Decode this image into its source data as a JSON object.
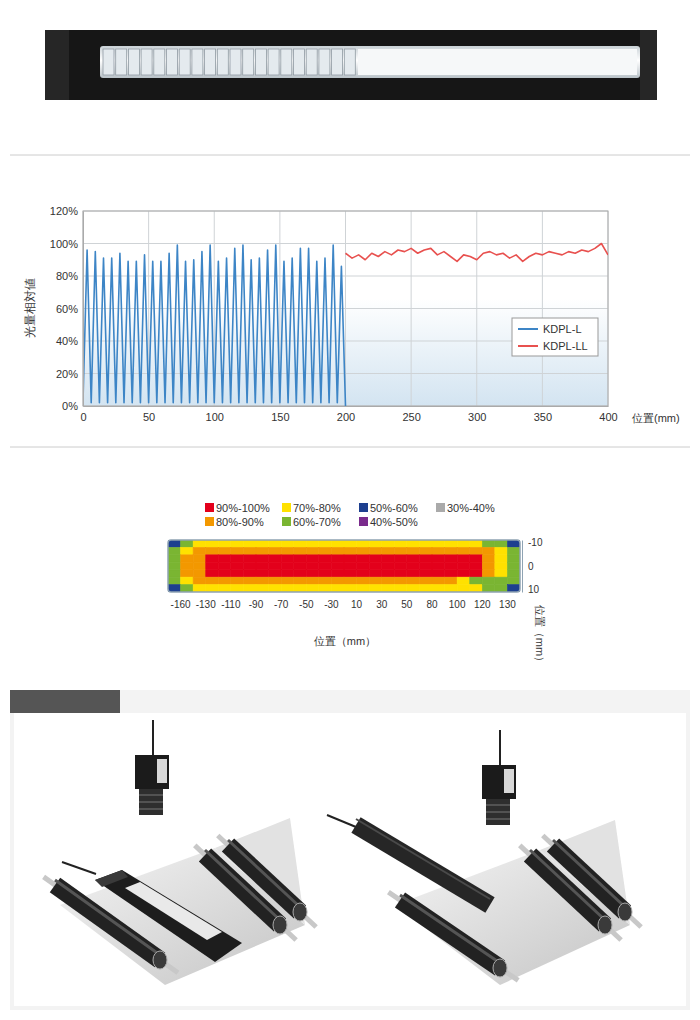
{
  "chart_data": [
    {
      "type": "line",
      "xlabel": "位置(mm)",
      "ylabel": "光量相対値",
      "xlim": [
        0,
        400
      ],
      "xticks": [
        0,
        50,
        100,
        150,
        200,
        250,
        300,
        350,
        400
      ],
      "ylim": [
        0,
        120
      ],
      "yticks": [
        {
          "value": 0,
          "label": "0%"
        },
        {
          "value": 20,
          "label": "20%"
        },
        {
          "value": 40,
          "label": "40%"
        },
        {
          "value": 60,
          "label": "60%"
        },
        {
          "value": 80,
          "label": "80%"
        },
        {
          "value": 100,
          "label": "100%"
        },
        {
          "value": 120,
          "label": "120%"
        }
      ],
      "grid": true,
      "legend": "right",
      "series": [
        {
          "name": "KDPL-L",
          "color": "#3d85c6",
          "x": [
            0,
            3.125,
            6.25,
            9.375,
            12.5,
            15.625,
            18.75,
            21.875,
            25,
            28.125,
            31.25,
            34.375,
            37.5,
            40.625,
            43.75,
            46.875,
            50,
            53.125,
            56.25,
            59.375,
            62.5,
            65.625,
            68.75,
            71.875,
            75,
            78.125,
            81.25,
            84.375,
            87.5,
            90.625,
            93.75,
            96.875,
            100,
            103.125,
            106.25,
            109.375,
            112.5,
            115.625,
            118.75,
            121.875,
            125,
            128.125,
            131.25,
            134.375,
            137.5,
            140.625,
            143.75,
            146.875,
            150,
            153.125,
            156.25,
            159.375,
            162.5,
            165.625,
            168.75,
            171.875,
            175,
            178.125,
            181.25,
            184.375,
            187.5,
            190.625,
            193.75,
            196.875,
            200
          ],
          "values": [
            3,
            96,
            2,
            95,
            2,
            91,
            2,
            91,
            2,
            94,
            2,
            89,
            2,
            89,
            2,
            93,
            2,
            89,
            2,
            89,
            2,
            94,
            2,
            99,
            2,
            89,
            2,
            90,
            2,
            95,
            2,
            99,
            2,
            89,
            2,
            91,
            2,
            97,
            2,
            99,
            2,
            90,
            2,
            91,
            2,
            96,
            2,
            99,
            2,
            89,
            2,
            91,
            2,
            97,
            2,
            97,
            2,
            89,
            2,
            91,
            2,
            99,
            2,
            86,
            0
          ]
        },
        {
          "name": "KDPL-LL",
          "color": "#e8514f",
          "x": [
            200,
            205,
            210,
            215,
            220,
            225,
            230,
            235,
            240,
            245,
            250,
            255,
            260,
            265,
            270,
            275,
            280,
            285,
            290,
            295,
            300,
            305,
            310,
            315,
            320,
            325,
            330,
            335,
            340,
            345,
            350,
            355,
            360,
            365,
            370,
            375,
            380,
            385,
            390,
            395,
            400
          ],
          "values": [
            94,
            91,
            93,
            90,
            94,
            92,
            95,
            93,
            96,
            95,
            97,
            94,
            96,
            97,
            93,
            95,
            92,
            89,
            93,
            92,
            90,
            94,
            95,
            93,
            94,
            91,
            93,
            89,
            92,
            94,
            93,
            95,
            94,
            93,
            95,
            94,
            96,
            95,
            97,
            100,
            93
          ]
        }
      ]
    },
    {
      "type": "heatmap",
      "xlabel": "位置（mm）",
      "ylabel": "位置（mm）",
      "categories": [
        "-160",
        "-130",
        "-110",
        "-90",
        "-70",
        "-50",
        "-30",
        "10",
        "30",
        "50",
        "80",
        "100",
        "120",
        "130"
      ],
      "ylim": [
        -11,
        11
      ],
      "yticks": [
        -10,
        0,
        10
      ],
      "bands": [
        {
          "label": "90%-100%",
          "color": "#e3001b",
          "min": 90,
          "max": 100
        },
        {
          "label": "80%-90%",
          "color": "#f39800",
          "min": 80,
          "max": 90
        },
        {
          "label": "70%-80%",
          "color": "#ffe100",
          "min": 70,
          "max": 80
        },
        {
          "label": "60%-70%",
          "color": "#7ab532",
          "min": 60,
          "max": 70
        },
        {
          "label": "50%-60%",
          "color": "#1d3f8f",
          "min": 50,
          "max": 60
        },
        {
          "label": "40%-50%",
          "color": "#7a2b8c",
          "min": 40,
          "max": 50
        },
        {
          "label": "30%-40%",
          "color": "#aaaaaa",
          "min": 30,
          "max": 40
        }
      ],
      "cells": [
        [
          55,
          65,
          72,
          74,
          75,
          75,
          75,
          75,
          75,
          75,
          75,
          75,
          75,
          75,
          75,
          75,
          75,
          75,
          75,
          75,
          75,
          75,
          75,
          74,
          72,
          68,
          62,
          52
        ],
        [
          62,
          75,
          84,
          86,
          86,
          87,
          87,
          86,
          87,
          87,
          86,
          87,
          87,
          86,
          87,
          87,
          86,
          87,
          87,
          86,
          87,
          86,
          86,
          85,
          84,
          80,
          72,
          60
        ],
        [
          65,
          80,
          88,
          91,
          93,
          94,
          94,
          93,
          94,
          95,
          94,
          93,
          94,
          94,
          95,
          94,
          93,
          94,
          94,
          93,
          94,
          93,
          92,
          91,
          90,
          86,
          76,
          63
        ],
        [
          66,
          82,
          89,
          93,
          95,
          96,
          96,
          97,
          96,
          97,
          96,
          97,
          97,
          96,
          97,
          98,
          97,
          96,
          97,
          96,
          97,
          96,
          95,
          93,
          91,
          87,
          78,
          64
        ],
        [
          65,
          80,
          88,
          92,
          93,
          94,
          95,
          94,
          94,
          95,
          94,
          94,
          95,
          94,
          95,
          95,
          94,
          95,
          94,
          94,
          94,
          93,
          93,
          92,
          90,
          86,
          76,
          63
        ],
        [
          62,
          75,
          84,
          86,
          87,
          86,
          87,
          87,
          86,
          87,
          87,
          88,
          87,
          87,
          86,
          87,
          87,
          86,
          87,
          86,
          85,
          84,
          80,
          72,
          60,
          60,
          60,
          60
        ],
        [
          55,
          65,
          72,
          74,
          75,
          75,
          75,
          75,
          75,
          75,
          75,
          75,
          75,
          75,
          75,
          75,
          75,
          75,
          75,
          75,
          75,
          75,
          75,
          74,
          72,
          68,
          62,
          52
        ]
      ]
    }
  ]
}
